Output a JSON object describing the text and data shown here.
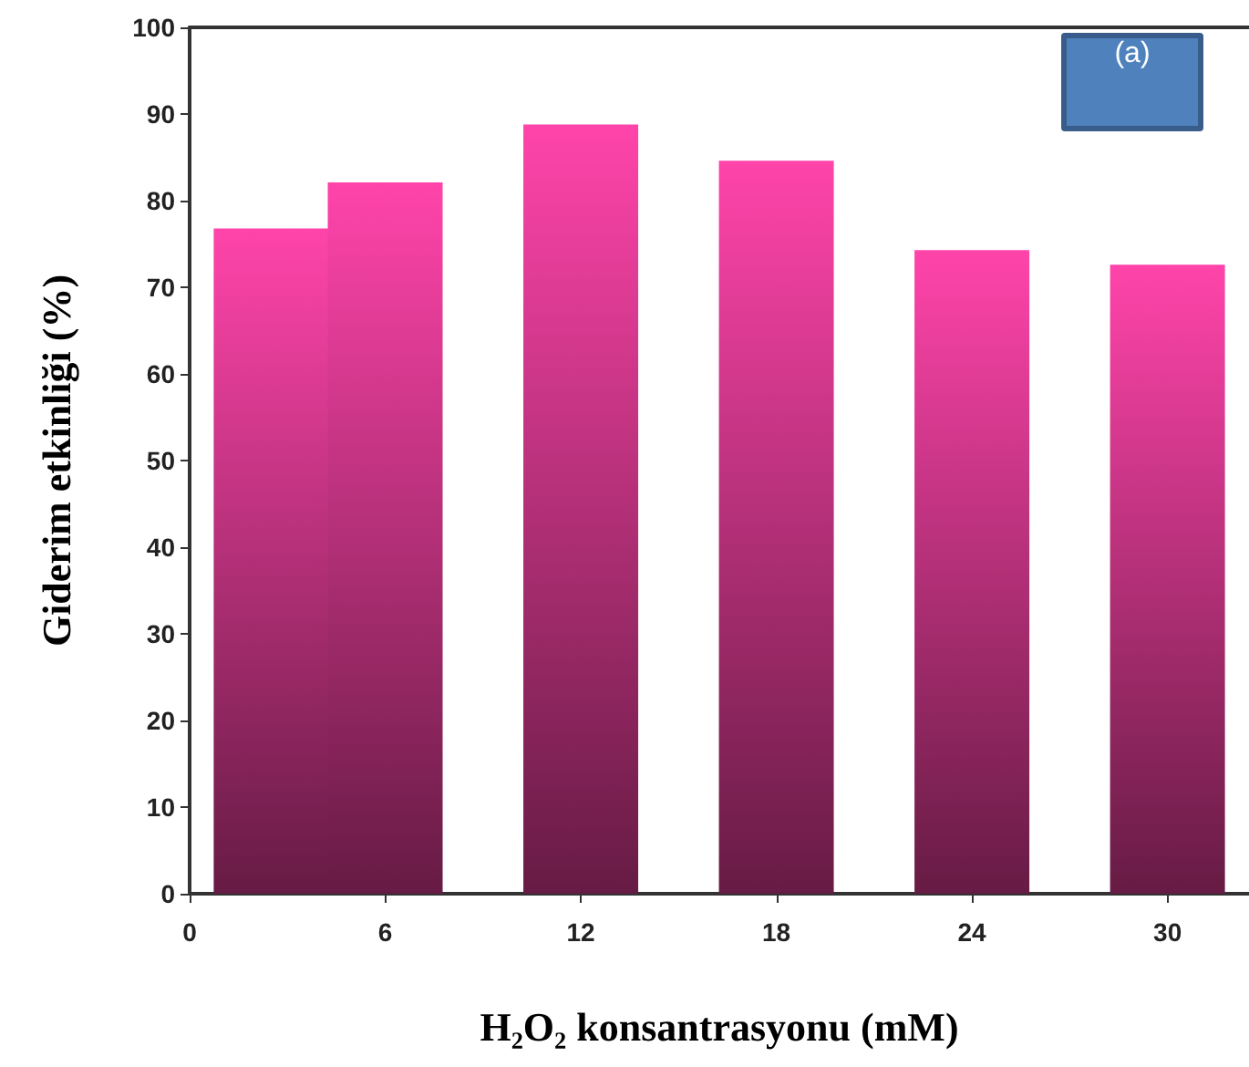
{
  "chart_data": {
    "type": "bar",
    "xlabel": "H₂O₂ konsantrasyonu (mM)",
    "ylabel": "Giderim etkinliği (%)",
    "x": [
      2.5,
      6,
      12,
      18,
      24,
      30
    ],
    "values": [
      76.8,
      82.1,
      88.8,
      84.6,
      74.3,
      72.6
    ],
    "color": "#ff44aa",
    "xlim": [
      0,
      32.5
    ],
    "xticks": [
      0,
      6,
      12,
      18,
      24,
      30
    ],
    "ylim": [
      0,
      100
    ],
    "yticks": [
      0,
      10,
      20,
      30,
      40,
      50,
      60,
      70,
      80,
      90,
      100
    ],
    "annotations": [
      "(a)"
    ]
  }
}
